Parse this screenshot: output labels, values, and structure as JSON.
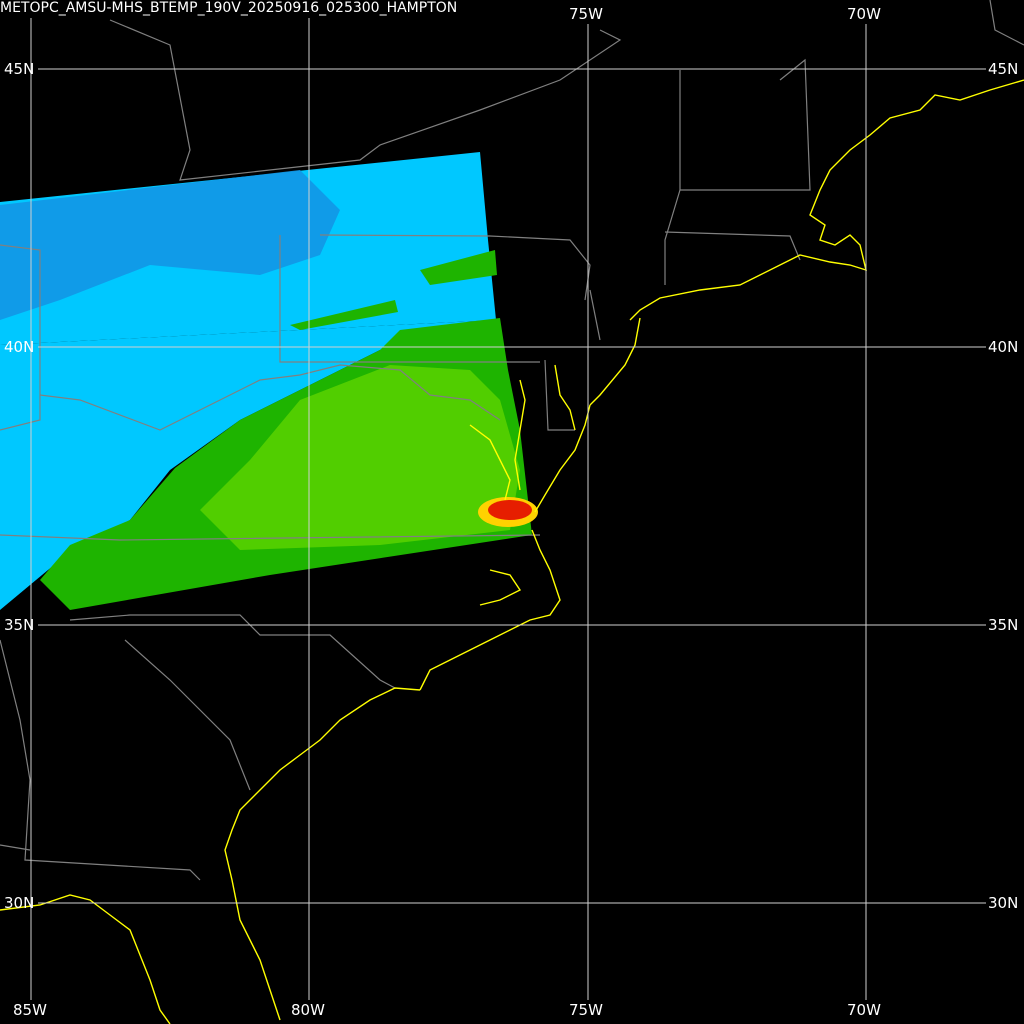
{
  "title": "METOPC_AMSU-MHS_BTEMP_190V_20250916_025300_HAMPTON",
  "grid": {
    "longitudes": [
      {
        "label": "85W"
      },
      {
        "label": "80W"
      },
      {
        "label": "75W"
      },
      {
        "label": "70W"
      }
    ],
    "latitudes": [
      {
        "label": "45N"
      },
      {
        "label": "40N"
      },
      {
        "label": "35N"
      },
      {
        "label": "30N"
      }
    ]
  },
  "colors": {
    "background": "#000000",
    "grid": "#d0d0d0",
    "coastline": "#ffff00",
    "borders": "#808080",
    "cold_swath": "#00c8ff",
    "cold_swath_dark": "#1296e6",
    "warm_swath": "#1eb400",
    "warm_swath_light": "#5ad200",
    "hot_spot": "#e61e00",
    "hot_ring": "#ffd200"
  }
}
